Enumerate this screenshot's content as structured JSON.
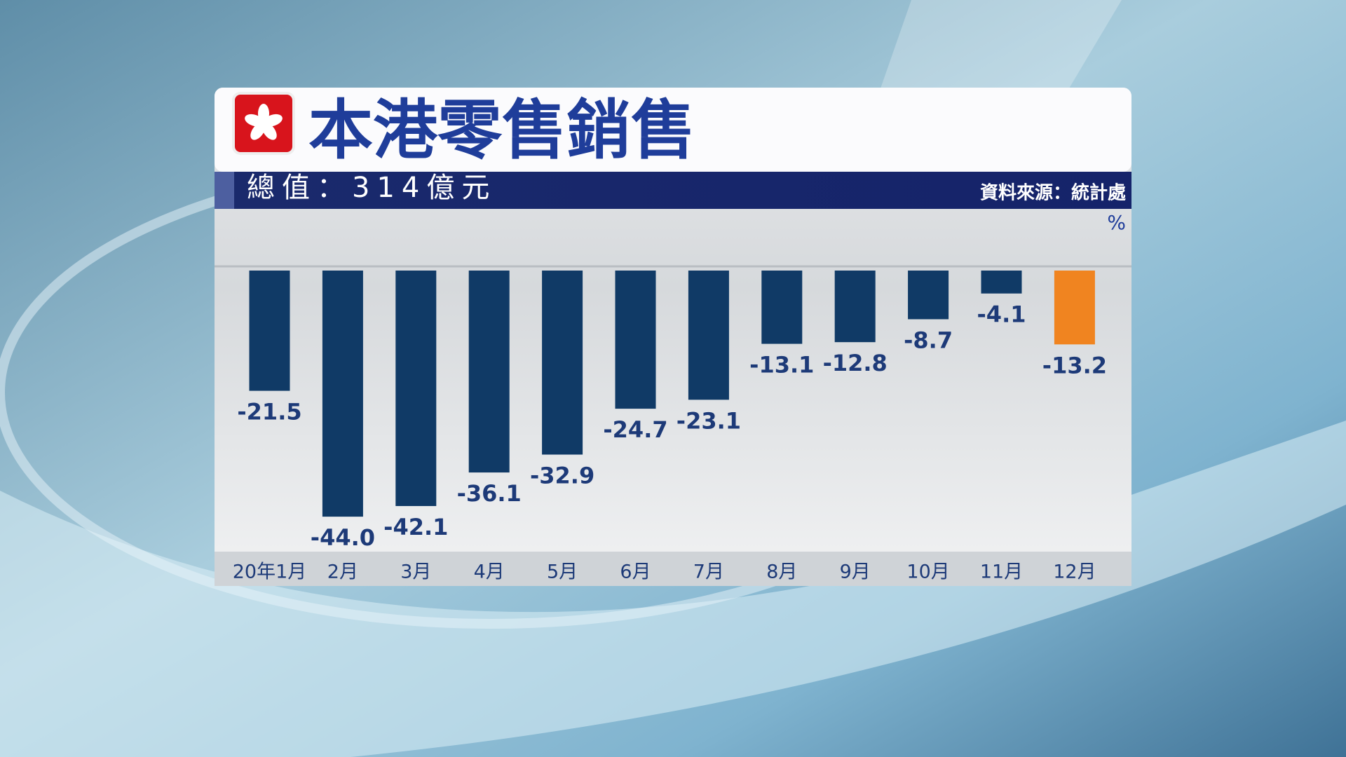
{
  "chart_data": {
    "type": "bar",
    "title": "本港零售銷售",
    "subtitle": "總值：314億元",
    "source": "資料來源：統計處",
    "unit": "%",
    "categories": [
      "20年1月",
      "2月",
      "3月",
      "4月",
      "5月",
      "6月",
      "7月",
      "8月",
      "9月",
      "10月",
      "11月",
      "12月"
    ],
    "values": [
      -21.5,
      -44.0,
      -42.1,
      -36.1,
      -32.9,
      -24.7,
      -23.1,
      -13.1,
      -12.8,
      -8.7,
      -4.1,
      -13.2
    ],
    "value_labels": [
      "-21.5",
      "-44.0",
      "-42.1",
      "-36.1",
      "-32.9",
      "-24.7",
      "-23.1",
      "-13.1",
      "-12.8",
      "-8.7",
      "-4.1",
      "-13.2"
    ],
    "colors": [
      "#103a66",
      "#103a66",
      "#103a66",
      "#103a66",
      "#103a66",
      "#103a66",
      "#103a66",
      "#103a66",
      "#103a66",
      "#103a66",
      "#103a66",
      "#f08420"
    ],
    "ylim": [
      -50,
      0
    ]
  }
}
